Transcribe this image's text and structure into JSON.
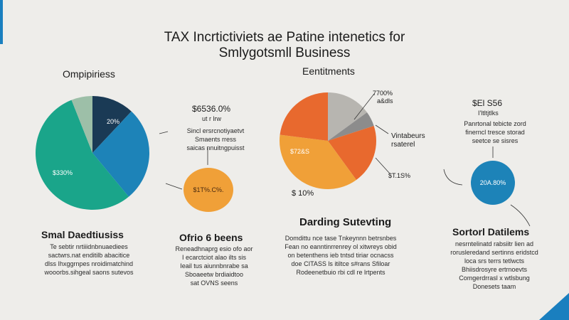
{
  "title_line1": "TAX Incrtictiviets ae Patine intenetics for",
  "title_line2": "Smlygotsmll Business",
  "colors": {
    "teal": "#1aa58a",
    "blue": "#1d83b8",
    "navy": "#1a3a55",
    "sage": "#9dbfa8",
    "orange": "#f0a038",
    "red_orange": "#e8692e",
    "gray": "#b7b5b0",
    "dark_gray": "#8c8c8c",
    "accent": "#1a7fbf"
  },
  "chart_data": [
    {
      "type": "pie",
      "title": "Ompipiriess",
      "slices": [
        {
          "label": "$330%",
          "value": 55,
          "color": "#1aa58a"
        },
        {
          "label": "",
          "value": 27,
          "color": "#1d83b8"
        },
        {
          "label": "20%",
          "value": 12,
          "color": "#1a3a55"
        },
        {
          "label": "",
          "value": 6,
          "color": "#9dbfa8"
        }
      ]
    },
    {
      "type": "pie",
      "title": "Eentitments",
      "slices": [
        {
          "label": "",
          "value": 15,
          "color": "#b7b5b0"
        },
        {
          "label": "",
          "value": 5,
          "color": "#8c8c8c"
        },
        {
          "label": "",
          "value": 20,
          "color": "#e8692e"
        },
        {
          "label": "$72&S",
          "value": 37,
          "color": "#f0a038"
        },
        {
          "label": "",
          "value": 23,
          "color": "#e8692e"
        }
      ]
    }
  ],
  "callouts": {
    "mid_value": "$6536.0%",
    "mid_sub": "ut r lrw",
    "mid_desc": [
      "Sincl ersrcnotiyaetvt",
      "Smaents rress",
      "saicas nnuitngpuisst"
    ],
    "circle_orange": "$1T%.C%.",
    "right_value": "$El S56",
    "right_sub": "I'ltltjtlks",
    "right_desc": [
      "Panrtonal tebicte zord",
      "finerncl tresce storad",
      "seetce se sisres"
    ],
    "circle_blue": "20A.80%",
    "pie2_top": "7700%",
    "pie2_top2": "a&dls",
    "pie2_right1": "Vintabeurs",
    "pie2_right2": "rsaterel",
    "pie2_right3": "$T.1S%",
    "pie2_bottom": "$ 10%"
  },
  "sections": {
    "left": {
      "heading": "Smal Daedtiusiss",
      "lines": [
        "Te sebtir nrtiiidnbnuaediees",
        "sactwrs.nat enditilb abacitice",
        "dlss Ihxggrnpes nroidimatchind",
        "wooorbs.sihgeal saons sutevos"
      ]
    },
    "mid": {
      "heading": "Ofrio 6 beens",
      "lines": [
        "Reneadhnaprg esio ofo aor",
        "I ecarctciot alao ilts sis",
        "Ieail tus aiunnbnrabe sa",
        "Sboaeetw brdiaidtoo",
        "sat OVNS seens"
      ]
    },
    "center": {
      "heading": "Darding Sutevting",
      "lines": [
        "Domdittu nce tase Tnkeynnn betrsnbes",
        "Fean no eanntinrrenrey ol xitwreys obid",
        "on betenthens ieb tntsd tiriar ocnacss",
        "doe CITASS ls itiltce s#rans Sfiloar",
        "Rodeenetbuio rbi cdl re lrtpents"
      ]
    },
    "right": {
      "heading": "Sortorl Datilems",
      "lines": [
        "nesrntelinatd rabsiitr lien ad",
        "rorusleredand sertinns eridstcd",
        "loca srs terrs tetlwcts",
        "Bhiisdrosyre ertrnoevts",
        "Comgerdrrasl x wtlsbung",
        "Donesets taam"
      ]
    }
  }
}
